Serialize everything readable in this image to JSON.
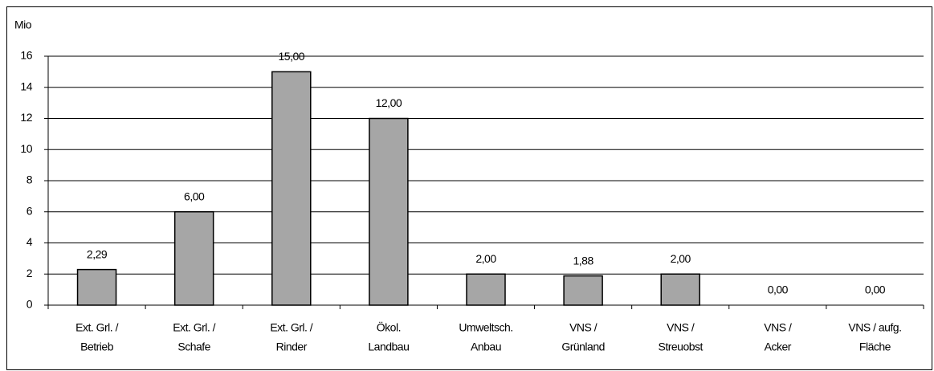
{
  "chart_data": {
    "type": "bar",
    "y_label": "Mio",
    "categories": [
      [
        "Ext. Grl. /",
        "Betrieb"
      ],
      [
        "Ext. Grl. /",
        "Schafe"
      ],
      [
        "Ext. Grl. /",
        "Rinder"
      ],
      [
        "Ökol.",
        "Landbau"
      ],
      [
        "Umweltsch.",
        "Anbau"
      ],
      [
        "VNS /",
        "Grünland"
      ],
      [
        "VNS /",
        "Streuobst"
      ],
      [
        "VNS /",
        "Acker"
      ],
      [
        "VNS / aufg.",
        "Fläche"
      ]
    ],
    "values": [
      2.29,
      6,
      15,
      12,
      2,
      1.88,
      2,
      0,
      0
    ],
    "value_labels": [
      "2,29",
      "6,00",
      "15,00",
      "12,00",
      "2,00",
      "1,88",
      "2,00",
      "0,00",
      "0,00"
    ],
    "color": "#a6a6a6",
    "ylim": [
      0,
      16
    ],
    "yticks": [
      0,
      2,
      4,
      6,
      8,
      10,
      12,
      14,
      16
    ],
    "grid": true
  }
}
